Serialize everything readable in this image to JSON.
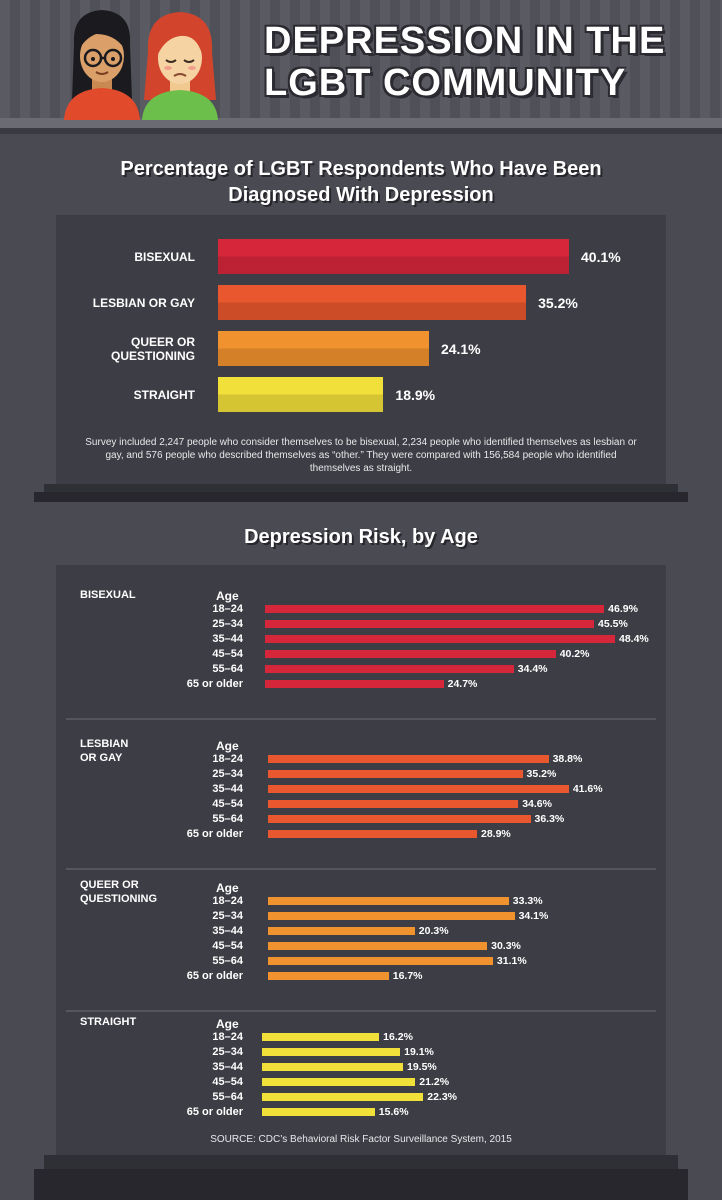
{
  "header": {
    "title_line1": "DEPRESSION IN THE",
    "title_line2": "LGBT COMMUNITY",
    "illustration": [
      "woman-with-glasses-icon",
      "sad-woman-icon"
    ]
  },
  "chart_data": [
    {
      "type": "bar",
      "orientation": "horizontal",
      "title": "Percentage of LGBT Respondents Who Have Been Diagnosed With Depression",
      "title_line1": "Percentage of LGBT Respondents Who Have Been",
      "title_line2": "Diagnosed With Depression",
      "categories": [
        "BISEXUAL",
        "LESBIAN OR GAY",
        "QUEER OR QUESTIONING",
        "STRAIGHT"
      ],
      "category_lines": [
        [
          "BISEXUAL"
        ],
        [
          "LESBIAN OR GAY"
        ],
        [
          "QUEER OR",
          "QUESTIONING"
        ],
        [
          "STRAIGHT"
        ]
      ],
      "values": [
        40.1,
        35.2,
        24.1,
        18.9
      ],
      "labels": [
        "40.1%",
        "35.2%",
        "24.1%",
        "18.9%"
      ],
      "colors": [
        "#d6263a",
        "#e8572d",
        "#f0922e",
        "#f2e03a"
      ],
      "xlim": [
        0,
        40.1
      ],
      "note": "Survey included 2,247 people who consider themselves to be bisexual, 2,234 people who identified themselves as lesbian or gay, and 576 people who described themselves as “other.” They were compared with 156,584 people who identified themselves as straight."
    },
    {
      "type": "bar",
      "orientation": "horizontal",
      "title": "Depression Risk, by Age",
      "age_header": "Age",
      "age_groups": [
        "18–24",
        "25–34",
        "35–44",
        "45–54",
        "55–64",
        "65 or older"
      ],
      "xlim": [
        0,
        48.4
      ],
      "series": [
        {
          "name": "BISEXUAL",
          "name_lines": [
            "BISEXUAL"
          ],
          "color": "#d6263a",
          "values": [
            46.9,
            45.5,
            48.4,
            40.2,
            34.4,
            24.7
          ],
          "labels": [
            "46.9%",
            "45.5%",
            "48.4%",
            "40.2%",
            "34.4%",
            "24.7%"
          ]
        },
        {
          "name": "LESBIAN OR GAY",
          "name_lines": [
            "LESBIAN",
            "OR GAY"
          ],
          "color": "#e8572d",
          "values": [
            38.8,
            35.2,
            41.6,
            34.6,
            36.3,
            28.9
          ],
          "labels": [
            "38.8%",
            "35.2%",
            "41.6%",
            "34.6%",
            "36.3%",
            "28.9%"
          ]
        },
        {
          "name": "QUEER OR QUESTIONING",
          "name_lines": [
            "QUEER OR",
            "QUESTIONING"
          ],
          "color": "#f0922e",
          "values": [
            33.3,
            34.1,
            20.3,
            30.3,
            31.1,
            16.7
          ],
          "labels": [
            "33.3%",
            "34.1%",
            "20.3%",
            "30.3%",
            "31.1%",
            "16.7%"
          ]
        },
        {
          "name": "STRAIGHT",
          "name_lines": [
            "STRAIGHT"
          ],
          "color": "#f2e03a",
          "values": [
            16.2,
            19.1,
            19.5,
            21.2,
            22.3,
            15.6
          ],
          "labels": [
            "16.2%",
            "19.1%",
            "19.5%",
            "21.2%",
            "22.3%",
            "15.6%"
          ]
        }
      ],
      "source": "SOURCE: CDC’s Behavioral Risk Factor Surveillance System, 2015"
    }
  ]
}
